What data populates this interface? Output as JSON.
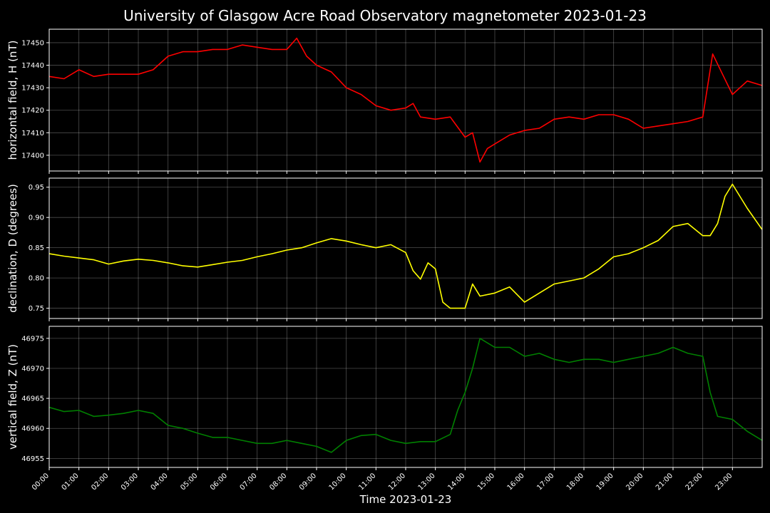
{
  "title": "University of Glasgow Acre Road Observatory magnetometer 2023-01-23",
  "chart_data": [
    {
      "type": "line",
      "ylabel": "horizontal field, H (nT)",
      "ylim": [
        17393,
        17456
      ],
      "yticks": [
        17400,
        17410,
        17420,
        17430,
        17440,
        17450
      ],
      "color": "#ff0000",
      "x": [
        "00:00",
        "00:30",
        "01:00",
        "01:30",
        "02:00",
        "02:30",
        "03:00",
        "03:30",
        "04:00",
        "04:30",
        "05:00",
        "05:30",
        "06:00",
        "06:30",
        "07:00",
        "07:30",
        "08:00",
        "08:20",
        "08:40",
        "09:00",
        "09:30",
        "10:00",
        "10:30",
        "11:00",
        "11:30",
        "12:00",
        "12:15",
        "12:30",
        "13:00",
        "13:30",
        "14:00",
        "14:15",
        "14:30",
        "14:45",
        "15:00",
        "15:30",
        "16:00",
        "16:30",
        "17:00",
        "17:30",
        "18:00",
        "18:30",
        "19:00",
        "19:30",
        "20:00",
        "20:30",
        "21:00",
        "21:30",
        "22:00",
        "22:20",
        "22:40",
        "23:00",
        "23:30",
        "24:00"
      ],
      "values": [
        17435,
        17434,
        17438,
        17435,
        17436,
        17436,
        17436,
        17438,
        17444,
        17446,
        17446,
        17447,
        17447,
        17449,
        17448,
        17447,
        17447,
        17452,
        17444,
        17440,
        17437,
        17430,
        17427,
        17422,
        17420,
        17421,
        17423,
        17417,
        17416,
        17417,
        17408,
        17410,
        17397,
        17403,
        17405,
        17409,
        17411,
        17412,
        17416,
        17417,
        17416,
        17418,
        17418,
        17416,
        17412,
        17413,
        17414,
        17415,
        17417,
        17445,
        17436,
        17427,
        17433,
        17431
      ],
      "grid": true
    },
    {
      "type": "line",
      "ylabel": "declination, D (degrees)",
      "ylim": [
        0.733,
        0.965
      ],
      "yticks": [
        "0.75",
        "0.80",
        "0.85",
        "0.90",
        "0.95"
      ],
      "color": "#ffff00",
      "x": [
        "00:00",
        "00:30",
        "01:00",
        "01:30",
        "02:00",
        "02:30",
        "03:00",
        "03:30",
        "04:00",
        "04:30",
        "05:00",
        "05:30",
        "06:00",
        "06:30",
        "07:00",
        "07:30",
        "08:00",
        "08:30",
        "09:00",
        "09:30",
        "10:00",
        "10:30",
        "11:00",
        "11:30",
        "12:00",
        "12:15",
        "12:30",
        "12:45",
        "13:00",
        "13:15",
        "13:30",
        "14:00",
        "14:15",
        "14:30",
        "15:00",
        "15:30",
        "16:00",
        "16:30",
        "17:00",
        "17:30",
        "18:00",
        "18:30",
        "19:00",
        "19:30",
        "20:00",
        "20:30",
        "21:00",
        "21:30",
        "22:00",
        "22:15",
        "22:30",
        "22:45",
        "23:00",
        "23:30",
        "24:00"
      ],
      "values": [
        0.84,
        0.836,
        0.833,
        0.83,
        0.823,
        0.828,
        0.831,
        0.829,
        0.825,
        0.82,
        0.818,
        0.822,
        0.826,
        0.829,
        0.835,
        0.84,
        0.846,
        0.85,
        0.858,
        0.865,
        0.861,
        0.855,
        0.85,
        0.855,
        0.842,
        0.812,
        0.798,
        0.825,
        0.815,
        0.76,
        0.75,
        0.75,
        0.79,
        0.77,
        0.775,
        0.785,
        0.76,
        0.775,
        0.79,
        0.795,
        0.8,
        0.815,
        0.835,
        0.84,
        0.85,
        0.862,
        0.885,
        0.89,
        0.87,
        0.87,
        0.89,
        0.935,
        0.955,
        0.915,
        0.88
      ],
      "grid": true
    },
    {
      "type": "line",
      "ylabel": "vertical field, Z (nT)",
      "ylim": [
        46953.5,
        46977
      ],
      "yticks": [
        46955,
        46960,
        46965,
        46970,
        46975
      ],
      "color": "#008000",
      "x": [
        "00:00",
        "00:30",
        "01:00",
        "01:30",
        "02:00",
        "02:30",
        "03:00",
        "03:30",
        "04:00",
        "04:30",
        "05:00",
        "05:30",
        "06:00",
        "06:30",
        "07:00",
        "07:30",
        "08:00",
        "08:30",
        "09:00",
        "09:30",
        "10:00",
        "10:30",
        "11:00",
        "11:30",
        "12:00",
        "12:30",
        "13:00",
        "13:30",
        "13:45",
        "14:00",
        "14:15",
        "14:30",
        "15:00",
        "15:30",
        "16:00",
        "16:30",
        "17:00",
        "17:30",
        "18:00",
        "18:30",
        "19:00",
        "19:30",
        "20:00",
        "20:30",
        "21:00",
        "21:30",
        "22:00",
        "22:15",
        "22:30",
        "23:00",
        "23:30",
        "24:00"
      ],
      "values": [
        46963.5,
        46962.8,
        46963,
        46962,
        46962.2,
        46962.5,
        46963,
        46962.5,
        46960.5,
        46960,
        46959.2,
        46958.5,
        46958.5,
        46958,
        46957.5,
        46957.5,
        46958,
        46957.5,
        46957,
        46956,
        46958,
        46958.8,
        46959,
        46958,
        46957.5,
        46957.8,
        46957.8,
        46959,
        46963,
        46966,
        46970,
        46975,
        46973.5,
        46973.5,
        46972,
        46972.5,
        46971.5,
        46971,
        46971.5,
        46971.5,
        46971,
        46971.5,
        46972,
        46972.5,
        46973.5,
        46972.5,
        46972,
        46966,
        46962,
        46961.5,
        46959.5,
        46958
      ]
    }
  ],
  "xticks": [
    "00:00",
    "01:00",
    "02:00",
    "03:00",
    "04:00",
    "05:00",
    "06:00",
    "07:00",
    "08:00",
    "09:00",
    "10:00",
    "11:00",
    "12:00",
    "13:00",
    "14:00",
    "15:00",
    "16:00",
    "17:00",
    "18:00",
    "19:00",
    "20:00",
    "21:00",
    "22:00",
    "23:00"
  ],
  "xlabel": "Time 2023-01-23"
}
